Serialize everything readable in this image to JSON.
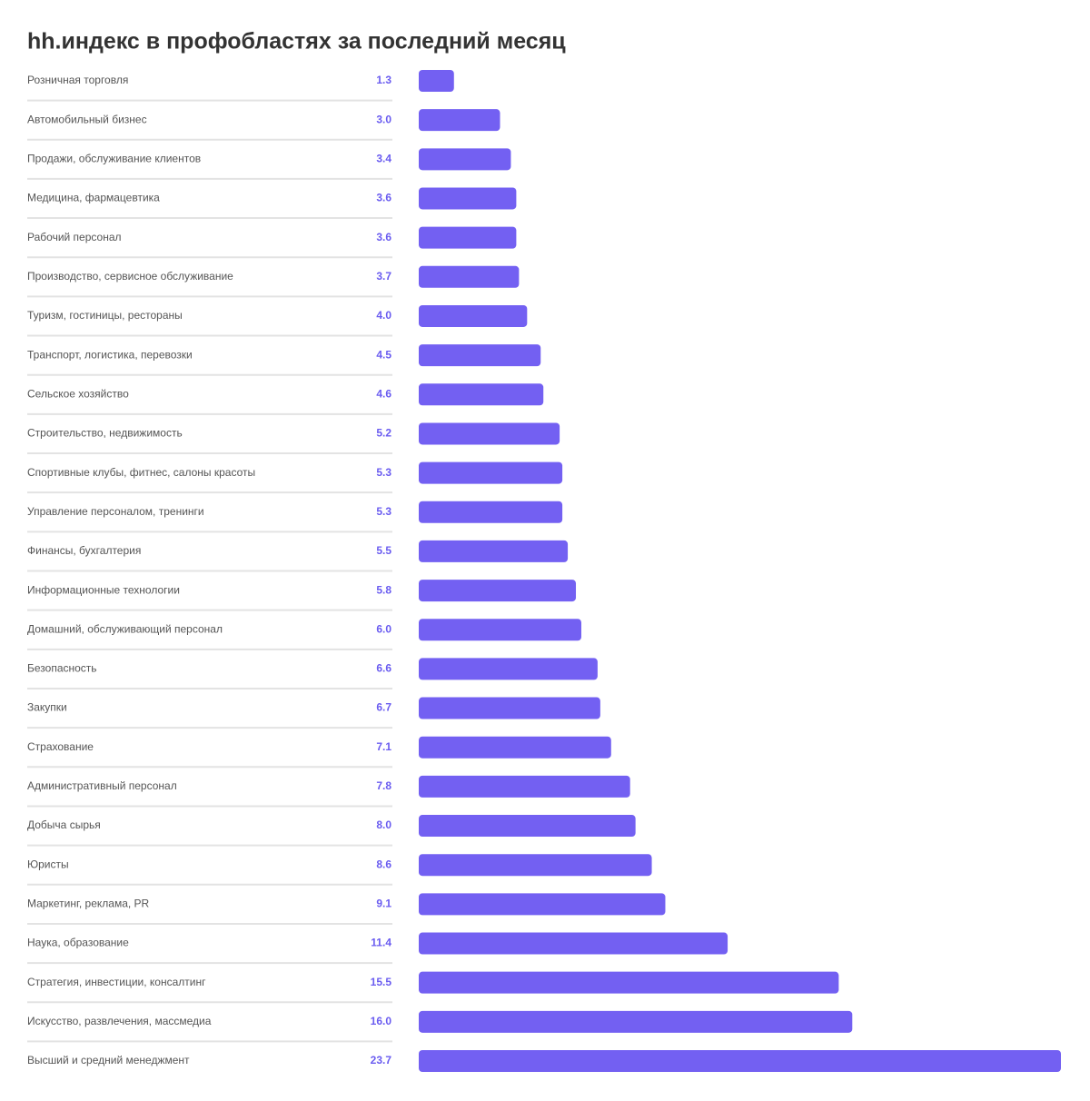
{
  "chart_data": {
    "type": "bar",
    "orientation": "horizontal",
    "title": "hh.индекс в профобластях за последний месяц",
    "color": "#7360f2",
    "categories": [
      "Розничная торговля",
      "Автомобильный бизнес",
      "Продажи, обслуживание клиентов",
      "Медицина, фармацевтика",
      "Рабочий персонал",
      "Производство, сервисное обслуживание",
      "Туризм, гостиницы, рестораны",
      "Транспорт, логистика, перевозки",
      "Сельское хозяйство",
      "Строительство, недвижимость",
      "Спортивные клубы, фитнес, салоны красоты",
      "Управление персоналом, тренинги",
      "Финансы, бухгалтерия",
      "Информационные технологии",
      "Домашний, обслуживающий персонал",
      "Безопасность",
      "Закупки",
      "Страхование",
      "Административный персонал",
      "Добыча сырья",
      "Юристы",
      "Маркетинг, реклама, PR",
      "Наука, образование",
      "Стратегия, инвестиции, консалтинг",
      "Искусство, развлечения, массмедиа",
      "Высший и средний менеджмент"
    ],
    "values": [
      1.3,
      3.0,
      3.4,
      3.6,
      3.6,
      3.7,
      4.0,
      4.5,
      4.6,
      5.2,
      5.3,
      5.3,
      5.5,
      5.8,
      6.0,
      6.6,
      6.7,
      7.1,
      7.8,
      8.0,
      8.6,
      9.1,
      11.4,
      15.5,
      16.0,
      23.7
    ],
    "value_labels": [
      "1.3",
      "3.0",
      "3.4",
      "3.6",
      "3.6",
      "3.7",
      "4.0",
      "4.5",
      "4.6",
      "5.2",
      "5.3",
      "5.3",
      "5.5",
      "5.8",
      "6.0",
      "6.6",
      "6.7",
      "7.1",
      "7.8",
      "8.0",
      "8.6",
      "9.1",
      "11.4",
      "15.5",
      "16.0",
      "23.7"
    ]
  }
}
